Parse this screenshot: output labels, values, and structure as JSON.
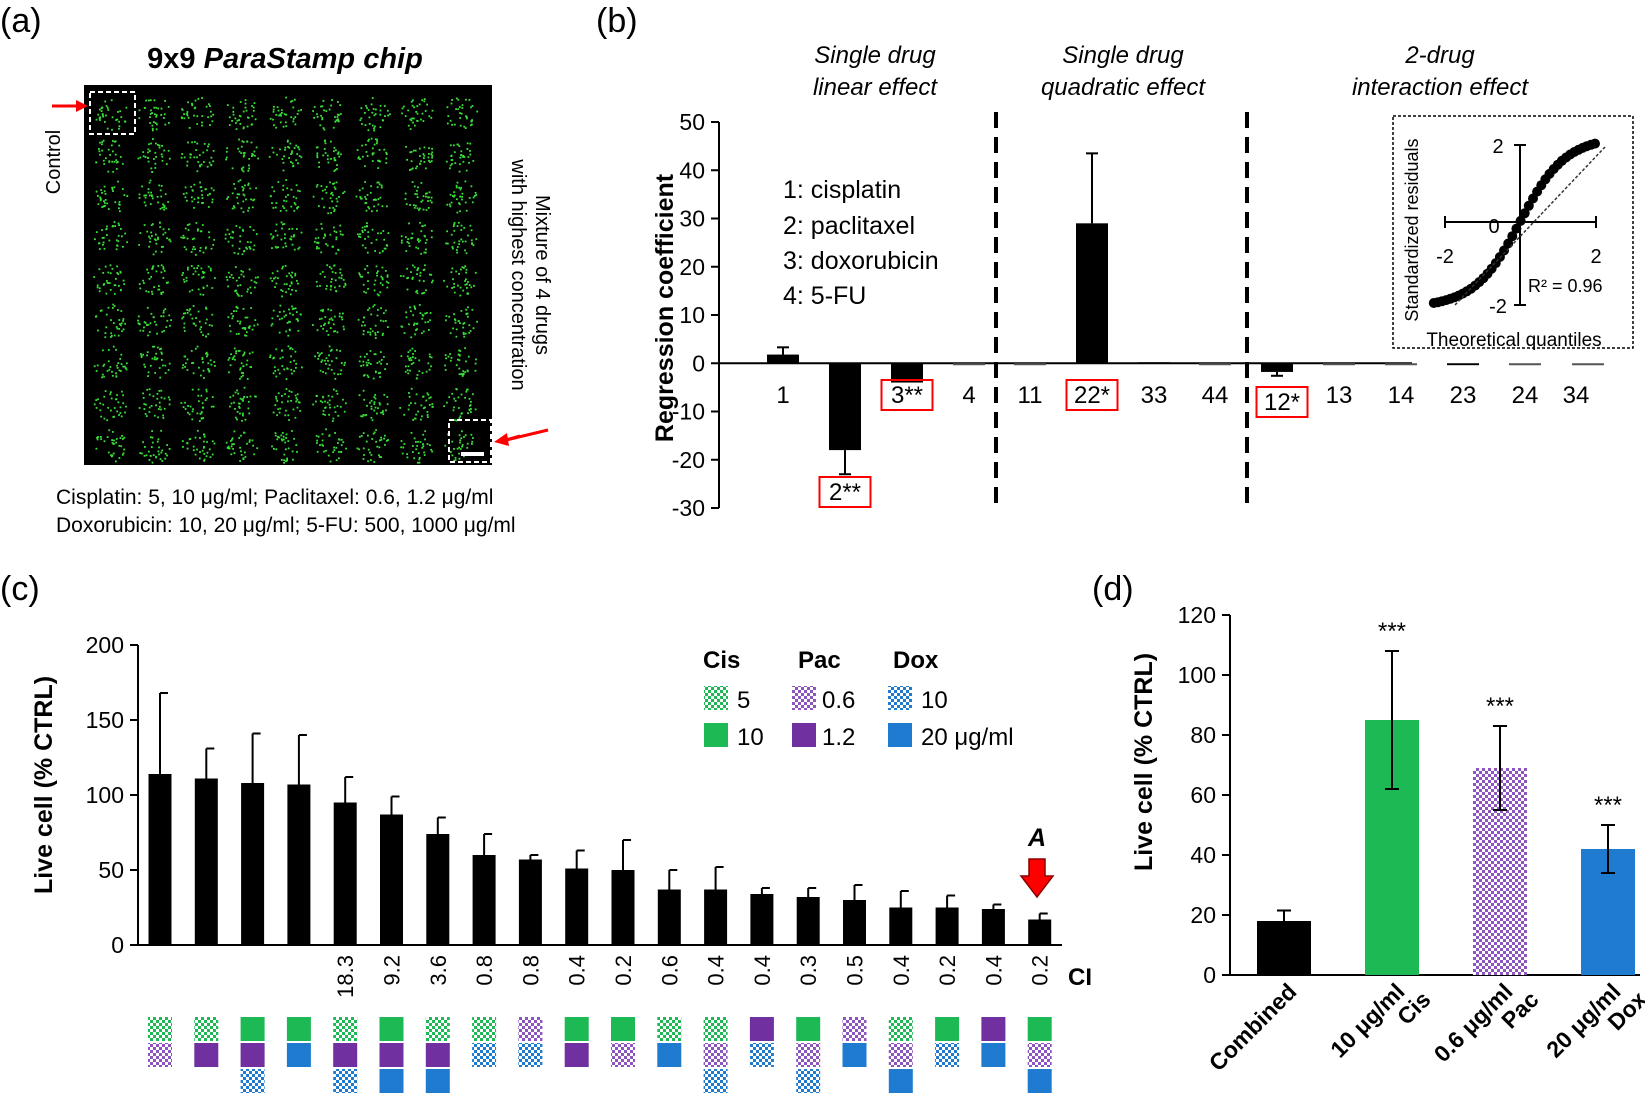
{
  "panel_labels": [
    "(a)",
    "(b)",
    "(c)",
    "(d)"
  ],
  "colors": {
    "cis": "#1db954",
    "pac": "#7030a0",
    "dox": "#1f7bd0",
    "cis_light": "#7fd69a",
    "pac_light": "#b997d6",
    "dox_light": "#88bfec",
    "bar": "#000000",
    "highlight": "#ff0000",
    "cell": "#39e039"
  },
  "panel_a": {
    "title_prefix": "9x9 ",
    "title_italic": "ParaStamp chip",
    "left_label": "Control",
    "right_label_1": "Mixture of 4 drugs",
    "right_label_2": "with highest concentration",
    "caption_1": "Cisplatin: 5, 10 μg/ml; Paclitaxel: 0.6, 1.2 μg/ml",
    "caption_2": "Doxorubicin: 10, 20 μg/ml; 5-FU: 500, 1000 μg/ml"
  },
  "panel_b_legend": [
    "1: cisplatin",
    "2: paclitaxel",
    "3: doxorubicin",
    "4: 5-FU"
  ],
  "panel_b_inset": {
    "ylabel": "Standardized residuals",
    "xlabel": "Theoretical quantiles",
    "r2": "R² = 0.96",
    "xticks": [
      "-2",
      "0",
      "2"
    ],
    "yticks": [
      "2",
      "-2"
    ]
  },
  "chart_data": [
    {
      "panel": "b",
      "type": "bar",
      "ylabel": "Regression coefficient",
      "ylim": [
        -30,
        50
      ],
      "yticks": [
        50,
        40,
        30,
        20,
        10,
        0,
        -10,
        -20,
        -30
      ],
      "groups": [
        {
          "title_1": "Single drug",
          "title_2": "linear effect"
        },
        {
          "title_1": "Single drug",
          "title_2": "quadratic effect"
        },
        {
          "title_1": "2-drug",
          "title_2": "interaction effect"
        }
      ],
      "categories": [
        "1",
        "2**",
        "3**",
        "4",
        "11",
        "22*",
        "33",
        "44",
        "12*",
        "13",
        "14",
        "23",
        "24",
        "34"
      ],
      "values": [
        1.8,
        -18,
        -4,
        0,
        0,
        29,
        0.2,
        0,
        -1.8,
        0.1,
        0,
        -0.4,
        0,
        0
      ],
      "errors": [
        1.5,
        5,
        0,
        0,
        0,
        14.5,
        0,
        0,
        0.8,
        0,
        0,
        0,
        0,
        0
      ],
      "significant": [
        false,
        true,
        true,
        false,
        false,
        true,
        false,
        false,
        true,
        false,
        false,
        false,
        false,
        false
      ]
    },
    {
      "panel": "c",
      "type": "bar",
      "ylabel": "Live cell (% CTRL)",
      "ylim": [
        0,
        200
      ],
      "yticks": [
        200,
        150,
        100,
        50,
        0
      ],
      "ci_label": "CI",
      "ci_values": [
        "",
        "",
        "",
        "",
        "18.3",
        "9.2",
        "3.6",
        "0.8",
        "0.8",
        "0.4",
        "0.2",
        "0.6",
        "0.4",
        "0.4",
        "0.3",
        "0.5",
        "0.4",
        "0.2",
        "0.4",
        "0.2"
      ],
      "values": [
        114,
        111,
        108,
        107,
        95,
        87,
        74,
        60,
        57,
        51,
        50,
        37,
        37,
        34,
        32,
        30,
        25,
        25,
        24,
        17
      ],
      "errors": [
        54,
        20,
        33,
        33,
        17,
        12,
        11,
        14,
        3,
        12,
        20,
        13,
        15,
        4,
        6,
        10,
        11,
        8,
        3,
        4
      ],
      "annotation": "A",
      "legend": {
        "headers": [
          "Cis",
          "Pac",
          "Dox"
        ],
        "rows": [
          [
            "5",
            "0.6",
            "10"
          ],
          [
            "10",
            "1.2",
            "20 μg/ml"
          ]
        ]
      },
      "combos": [
        [
          "cis_l",
          "pac_l"
        ],
        [
          "cis_l",
          "pac_d"
        ],
        [
          "cis_d",
          "pac_d",
          "dox_l"
        ],
        [
          "cis_d",
          "dox_d"
        ],
        [
          "cis_l",
          "pac_d",
          "dox_l"
        ],
        [
          "cis_d",
          "pac_d",
          "dox_d"
        ],
        [
          "cis_l",
          "pac_d",
          "dox_d"
        ],
        [
          "cis_l",
          "dox_l"
        ],
        [
          "pac_l",
          "dox_l"
        ],
        [
          "cis_d",
          "pac_d"
        ],
        [
          "cis_d",
          "pac_l"
        ],
        [
          "cis_l",
          "dox_d"
        ],
        [
          "cis_l",
          "pac_l",
          "dox_l"
        ],
        [
          "pac_d",
          "dox_l"
        ],
        [
          "cis_d",
          "pac_l",
          "dox_l"
        ],
        [
          "pac_l",
          "dox_d"
        ],
        [
          "cis_l",
          "pac_l",
          "dox_d"
        ],
        [
          "cis_d",
          "dox_l"
        ],
        [
          "pac_d",
          "dox_d"
        ],
        [
          "cis_d",
          "pac_l",
          "dox_d"
        ]
      ]
    },
    {
      "panel": "d",
      "type": "bar",
      "ylabel": "Live cell (% CTRL)",
      "ylim": [
        0,
        120
      ],
      "yticks": [
        120,
        100,
        80,
        60,
        40,
        20,
        0
      ],
      "categories": [
        [
          "Combined"
        ],
        [
          "10 μg/ml",
          "Cis"
        ],
        [
          "0.6 μg/ml",
          "Pac"
        ],
        [
          "20 μg/ml",
          "Dox"
        ]
      ],
      "values": [
        18,
        85,
        69,
        42
      ],
      "errors": [
        3.5,
        23,
        14,
        8
      ],
      "significance": [
        "",
        "***",
        "***",
        "***"
      ],
      "styles": [
        "solid_black",
        "solid_cis",
        "pattern_pac",
        "solid_dox"
      ]
    }
  ]
}
